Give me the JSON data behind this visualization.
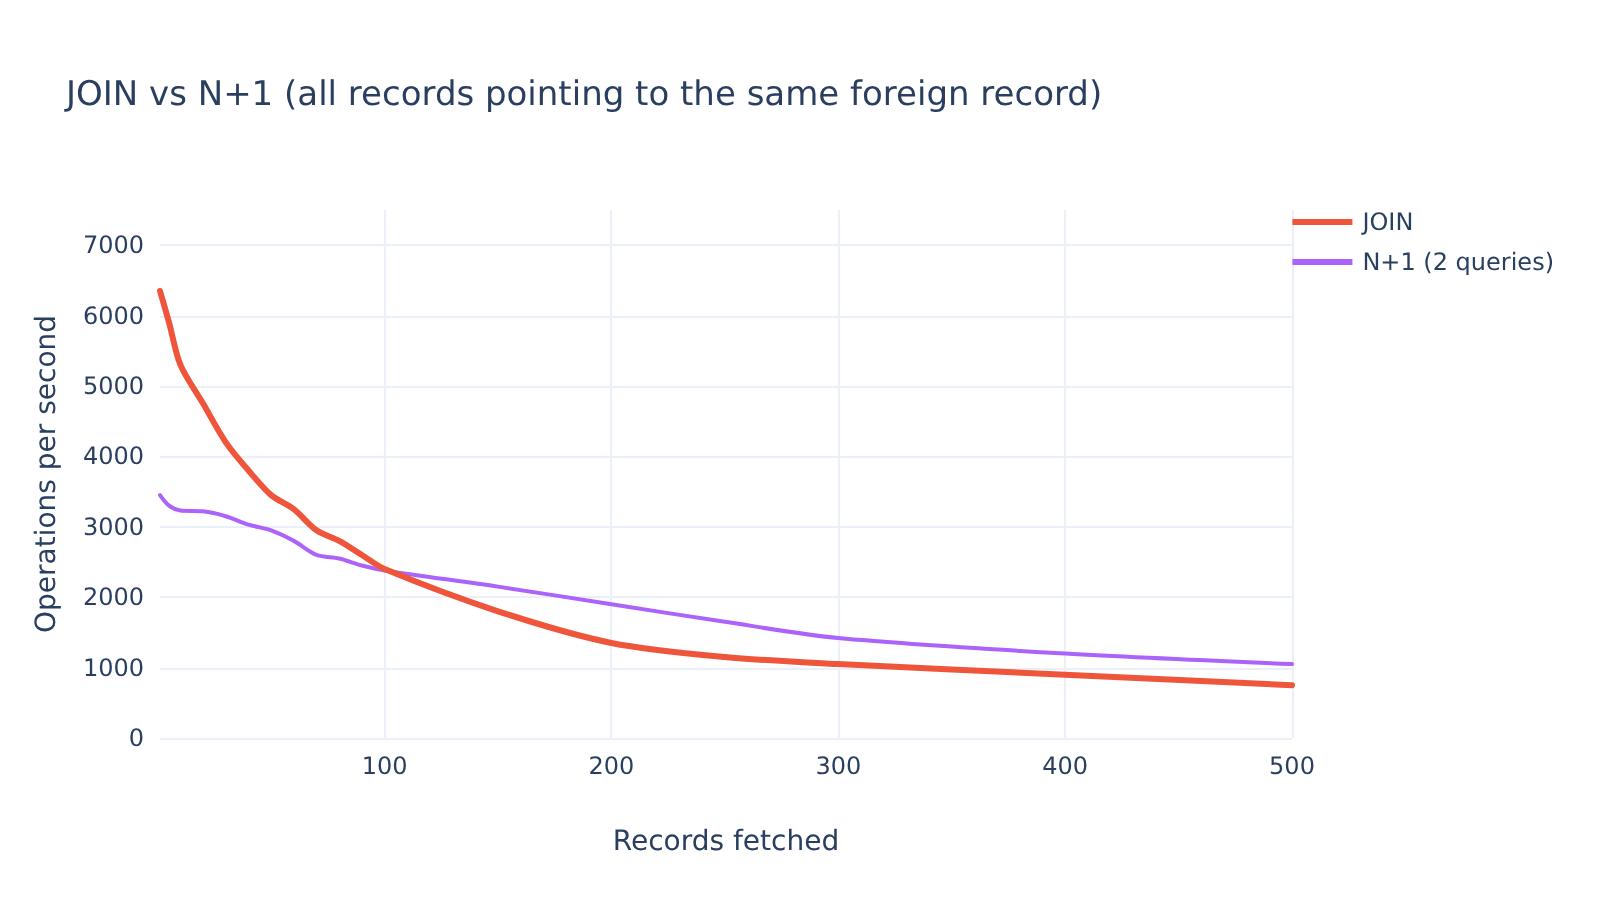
{
  "chart_data": {
    "type": "line",
    "title": "JOIN vs N+1 (all records pointing to the same foreign record)",
    "xlabel": "Records fetched",
    "ylabel": "Operations per second",
    "x": [
      1,
      5,
      10,
      20,
      30,
      40,
      50,
      60,
      70,
      80,
      90,
      100,
      150,
      200,
      250,
      300,
      400,
      500
    ],
    "series": [
      {
        "name": "JOIN",
        "color": "#ef553b",
        "values": [
          6350,
          5900,
          5300,
          4750,
          4200,
          3800,
          3450,
          3250,
          2950,
          2800,
          2600,
          2400,
          1800,
          1350,
          1150,
          1050,
          900,
          750
        ]
      },
      {
        "name": "N+1 (2 queries)",
        "color": "#ab63fa",
        "values": [
          3450,
          3300,
          3230,
          3220,
          3150,
          3030,
          2950,
          2800,
          2600,
          2550,
          2450,
          2380,
          2150,
          1900,
          1650,
          1420,
          1200,
          1050
        ]
      }
    ],
    "xlim": [
      1,
      500
    ],
    "xticks": [
      100,
      200,
      300,
      400,
      500
    ],
    "ylim": [
      0,
      7500
    ],
    "yticks": [
      0,
      1000,
      2000,
      3000,
      4000,
      5000,
      6000,
      7000
    ],
    "grid": true,
    "legend": "top right",
    "marker": "none",
    "line_style": "solid"
  }
}
